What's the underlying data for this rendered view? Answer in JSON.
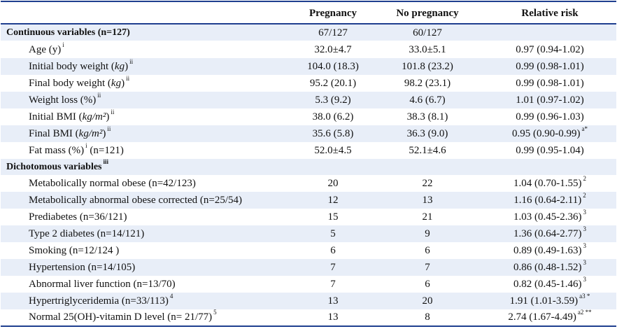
{
  "header": {
    "col_pregnancy": "Pregnancy",
    "col_no_pregnancy": "No pregnancy",
    "col_relative_risk": "Relative risk"
  },
  "section_continuous": {
    "label": "Continuous variables (n=127)",
    "pregnancy": "67/127",
    "no_pregnancy": "60/127"
  },
  "continuous_rows": [
    {
      "label": "Age (y)",
      "sup": "i",
      "pregnancy": "32.0±4.7",
      "no_pregnancy": "33.0±5.1",
      "rr": "0.97 (0.94-1.02)",
      "rr_sup": ""
    },
    {
      "label_pre": "Initial body weight (",
      "unit": "kg",
      "label_post": ")",
      "sup": "ii",
      "pregnancy": "104.0 (18.3)",
      "no_pregnancy": "101.8 (23.2)",
      "rr": "0.99 (0.98-1.01)",
      "rr_sup": ""
    },
    {
      "label_pre": "Final body weight (",
      "unit": "kg",
      "label_post": ")",
      "sup": "ii",
      "pregnancy": "95.2 (20.1)",
      "no_pregnancy": "98.2 (23.1)",
      "rr": "0.99 (0.98-1.01)",
      "rr_sup": ""
    },
    {
      "label": "Weight loss (%)",
      "sup": "ii",
      "pregnancy": "5.3 (9.2)",
      "no_pregnancy": "4.6 (6.7)",
      "rr": "1.01 (0.97-1.02)",
      "rr_sup": ""
    },
    {
      "label_pre": "Initial BMI (",
      "unit": "kg/m²",
      "label_post": ")",
      "sup": "ii",
      "pregnancy": "38.0 (6.2)",
      "no_pregnancy": "38.3 (8.1)",
      "rr": "0.99 (0.96-1.03)",
      "rr_sup": ""
    },
    {
      "label_pre": "Final BMI (",
      "unit": "kg/m²",
      "label_post": ")",
      "sup": "ii",
      "pregnancy": "35.6 (5.8)",
      "no_pregnancy": "36.3 (9.0)",
      "rr": "0.95 (0.90-0.99)",
      "rr_sup": "a*"
    },
    {
      "label_pre": "Fat mass (%)",
      "sup_mid": "i",
      "label_post": " (n=121)",
      "pregnancy": "52.0±4.5",
      "no_pregnancy": "52.1±4.6",
      "rr": "0.99 (0.95-1.04)",
      "rr_sup": ""
    }
  ],
  "section_dichotomous": {
    "label": "Dichotomous variables",
    "sup": "iii"
  },
  "dichotomous_rows": [
    {
      "label": "Metabolically normal obese (n=42/123)",
      "pregnancy": "20",
      "no_pregnancy": "22",
      "rr": "1.04 (0.70-1.55)",
      "rr_sup": "2"
    },
    {
      "label": "Metabolically abnormal obese corrected (n=25/54)",
      "pregnancy": "12",
      "no_pregnancy": "13",
      "rr": "1.16 (0.64-2.11)",
      "rr_sup": "2"
    },
    {
      "label": "Prediabetes (n=36/121)",
      "pregnancy": "15",
      "no_pregnancy": "21",
      "rr": "1.03 (0.45-2.36)",
      "rr_sup": "3"
    },
    {
      "label": "Type 2 diabetes (n=14/121)",
      "pregnancy": "5",
      "no_pregnancy": "9",
      "rr": "1.36 (0.64-2.77)",
      "rr_sup": "3"
    },
    {
      "label": "Smoking (n=12/124 )",
      "pregnancy": "6",
      "no_pregnancy": "6",
      "rr": "0.89 (0.49-1.63)",
      "rr_sup": "3"
    },
    {
      "label": "Hypertension (n=14/105)",
      "pregnancy": "7",
      "no_pregnancy": "7",
      "rr": "0.86 (0.48-1.52)",
      "rr_sup": "3"
    },
    {
      "label": "Abnormal liver function (n=13/70)",
      "pregnancy": "7",
      "no_pregnancy": "6",
      "rr": "0.82 (0.45-1.46)",
      "rr_sup": "3"
    },
    {
      "label": "Hypertriglyceridemia (n=33/113)",
      "label_sup": "4",
      "pregnancy": "13",
      "no_pregnancy": "20",
      "rr": "1.91 (1.01-3.59)",
      "rr_sup": "a3 *"
    },
    {
      "label": "Normal 25(OH)-vitamin D level (n= 21/77)",
      "label_sup": "5",
      "pregnancy": "13",
      "no_pregnancy": "8",
      "rr": "2.74 (1.67-4.49)",
      "rr_sup": "a2 **"
    }
  ],
  "colors": {
    "rule": "#1f3f8f",
    "shade": "#e8eef8"
  }
}
